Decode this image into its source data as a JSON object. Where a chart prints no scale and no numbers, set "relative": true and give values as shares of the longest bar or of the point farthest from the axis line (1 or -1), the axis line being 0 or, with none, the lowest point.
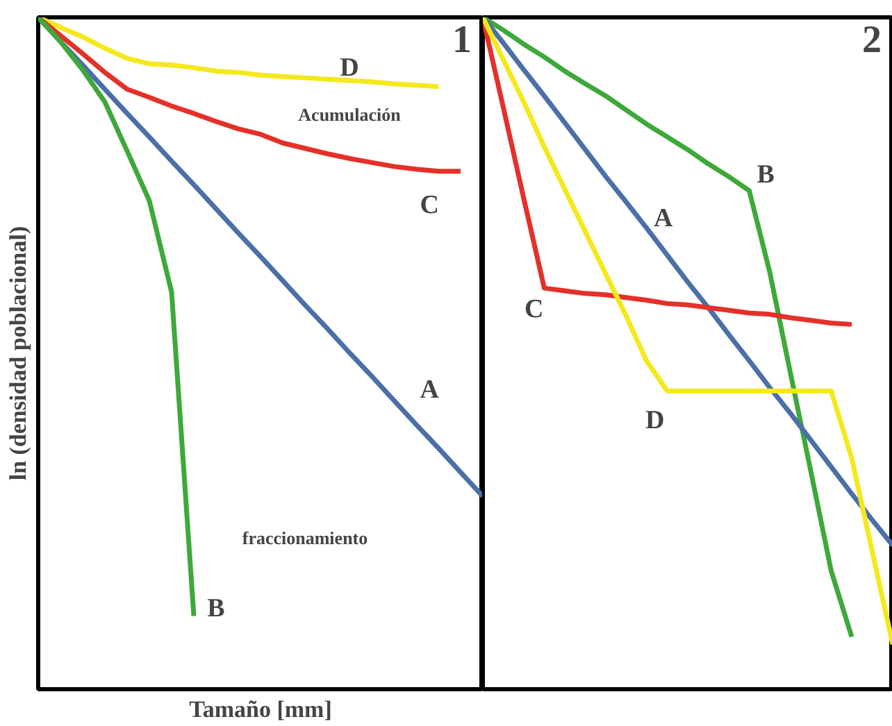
{
  "chart_data": [
    {
      "type": "line",
      "title": "1",
      "xlabel": "Tamaño [mm]",
      "ylabel": "ln (densidad poblacional)",
      "relative": true,
      "legend": false,
      "categories": [
        null,
        null,
        null,
        null,
        null,
        null,
        null,
        null,
        null,
        null,
        null,
        null,
        null,
        null,
        null,
        null,
        null,
        null,
        null,
        null,
        null
      ],
      "annotations": [
        "Acumulación",
        "fraccionamiento"
      ],
      "series": [
        {
          "name": "D",
          "color": "#f5e81c",
          "values": [
            1.0,
            0.985,
            0.971,
            0.954,
            0.939,
            0.931,
            0.929,
            0.925,
            0.92,
            0.918,
            0.914,
            0.912,
            0.91,
            0.908,
            0.906,
            0.904,
            0.901,
            0.899,
            0.897,
            null,
            null
          ]
        },
        {
          "name": "C",
          "color": "#e3312a",
          "values": [
            1.0,
            0.973,
            0.946,
            0.918,
            0.893,
            0.881,
            0.868,
            0.857,
            0.845,
            0.834,
            0.826,
            0.813,
            0.805,
            0.797,
            0.79,
            0.784,
            0.778,
            0.774,
            0.771,
            0.771,
            null
          ]
        },
        {
          "name": "A",
          "color": "#4b6fa6",
          "values": [
            1.0,
            0.964,
            0.929,
            0.893,
            0.857,
            0.822,
            0.786,
            0.751,
            0.715,
            0.679,
            0.644,
            0.608,
            0.572,
            0.537,
            0.501,
            0.466,
            0.43,
            0.394,
            0.359,
            0.323,
            0.287
          ]
        },
        {
          "name": "B",
          "color": "#3fa83a",
          "values": [
            1.0,
            0.964,
            0.922,
            0.874,
            0.801,
            0.727,
            0.591,
            0.109,
            null,
            null,
            null,
            null,
            null,
            null,
            null,
            null,
            null,
            null,
            null,
            null,
            null
          ]
        }
      ]
    },
    {
      "type": "line",
      "title": "2",
      "relative": true,
      "legend": false,
      "categories": [
        null,
        null,
        null,
        null,
        null,
        null,
        null,
        null,
        null,
        null,
        null,
        null,
        null,
        null,
        null,
        null,
        null,
        null,
        null,
        null,
        null
      ],
      "series": [
        {
          "name": "B",
          "color": "#3fa83a",
          "values": [
            1.0,
            0.981,
            0.96,
            0.941,
            0.92,
            0.901,
            0.883,
            0.862,
            0.841,
            0.822,
            0.803,
            0.782,
            0.763,
            0.742,
            0.621,
            0.472,
            0.325,
            0.176,
            0.078,
            null,
            null
          ]
        },
        {
          "name": "A",
          "color": "#4b6fa6",
          "values": [
            1.0,
            0.962,
            0.922,
            0.883,
            0.843,
            0.803,
            0.763,
            0.725,
            0.686,
            0.646,
            0.606,
            0.568,
            0.528,
            0.489,
            0.449,
            0.411,
            0.371,
            0.331,
            0.291,
            0.252,
            0.214
          ]
        },
        {
          "name": "C",
          "color": "#e3312a",
          "values": [
            1.0,
            0.866,
            0.73,
            0.597,
            0.593,
            0.589,
            0.587,
            0.583,
            0.579,
            0.574,
            0.572,
            0.568,
            0.564,
            0.56,
            0.558,
            0.553,
            0.549,
            0.545,
            0.543,
            null,
            null
          ]
        },
        {
          "name": "D",
          "color": "#f5e81c",
          "values": [
            1.0,
            0.937,
            0.874,
            0.807,
            0.744,
            0.681,
            0.618,
            0.555,
            0.488,
            0.444,
            0.444,
            0.444,
            0.444,
            0.444,
            0.444,
            0.444,
            0.444,
            0.444,
            0.344,
            0.205,
            0.067
          ]
        }
      ]
    }
  ]
}
